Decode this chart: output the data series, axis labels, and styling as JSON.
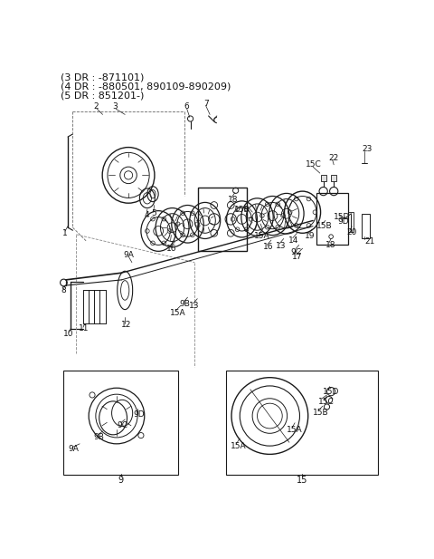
{
  "title_lines": [
    "(3 DR : -871101)",
    "(4 DR : -880501, 890109-890209)",
    "(5 DR : 851201-)"
  ],
  "bg_color": "#ffffff",
  "line_color": "#1a1a1a",
  "text_color": "#111111",
  "fig_width": 4.8,
  "fig_height": 6.17,
  "dpi": 100
}
